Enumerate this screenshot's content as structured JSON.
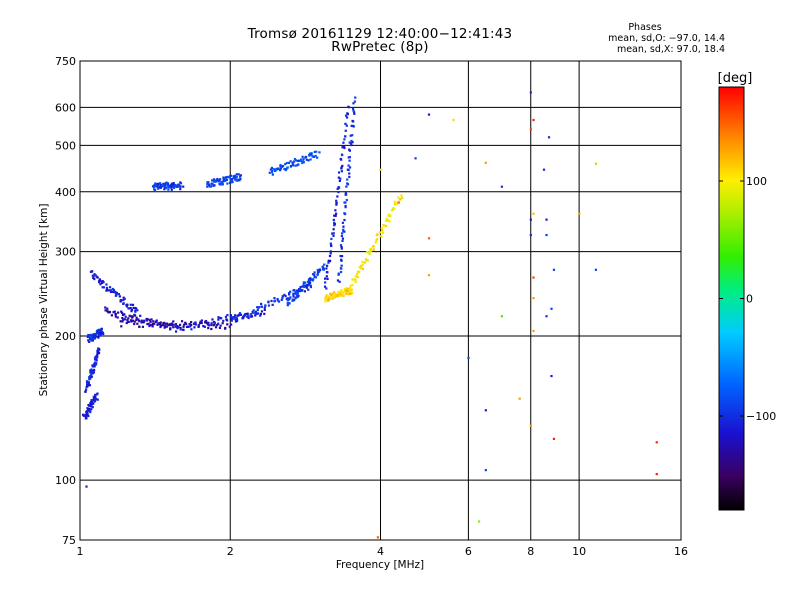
{
  "header": {
    "title_line1": "Tromsø 20161129 12:40:00−12:41:43",
    "title_line2": "RwPretec (8p)"
  },
  "phase_info": {
    "label": "Phases",
    "o_mode": "mean, sd,O: −97.0, 14.4",
    "x_mode": "mean, sd,X: 97.0, 18.4"
  },
  "colorbar": {
    "unit": "[deg]",
    "tick_labels": [
      "100",
      "0",
      "−100"
    ],
    "tick_values": [
      100,
      0,
      -100
    ],
    "range": [
      -180,
      180
    ]
  },
  "chart_data": {
    "type": "scatter",
    "title": "Tromsø 20161129 12:40:00−12:41:43",
    "subtitle": "RwPretec (8p)",
    "xlabel": "Frequency [MHz]",
    "ylabel": "Stationary phase Virtual Height [km]",
    "xscale": "log",
    "yscale": "log",
    "xlim": [
      1,
      16
    ],
    "ylim": [
      75,
      750
    ],
    "x_tick_labels": [
      "1",
      "2",
      "4",
      "6",
      "8",
      "10",
      "16"
    ],
    "x_ticks": [
      1,
      2,
      4,
      6,
      8,
      10,
      16
    ],
    "y_tick_labels": [
      "750",
      "600",
      "500",
      "400",
      "300",
      "200",
      "100",
      "75"
    ],
    "y_ticks": [
      750,
      600,
      500,
      400,
      300,
      200,
      100,
      75
    ],
    "grid": true,
    "color_variable": "Phase [deg]",
    "traces": [
      {
        "x": [
          1.02,
          1.08
        ],
        "y": [
          135,
          150
        ],
        "phase": -110
      },
      {
        "x": [
          1.03,
          1.09
        ],
        "y": [
          155,
          188
        ],
        "phase": -105
      },
      {
        "x": [
          1.04,
          1.11
        ],
        "y": [
          197,
          205
        ],
        "phase": -100
      },
      {
        "x": [
          1.05,
          1.3
        ],
        "y": [
          270,
          225
        ],
        "phase": -110
      },
      {
        "x": [
          1.12,
          1.55
        ],
        "y": [
          226,
          208
        ],
        "phase": -125
      },
      {
        "x": [
          1.2,
          2.0
        ],
        "y": [
          213,
          210
        ],
        "phase": -130
      },
      {
        "x": [
          1.55,
          2.35
        ],
        "y": [
          207,
          225
        ],
        "phase": -115
      },
      {
        "x": [
          2.0,
          2.9
        ],
        "y": [
          215,
          255
        ],
        "phase": -100
      },
      {
        "x": [
          2.6,
          3.1
        ],
        "y": [
          235,
          280
        ],
        "phase": -95
      },
      {
        "x": [
          3.1,
          3.45
        ],
        "y": [
          250,
          600
        ],
        "phase": -105
      },
      {
        "x": [
          3.3,
          3.55
        ],
        "y": [
          260,
          620
        ],
        "phase": -100
      },
      {
        "x": [
          1.4,
          1.6
        ],
        "y": [
          410,
          412
        ],
        "phase": -95
      },
      {
        "x": [
          1.8,
          2.1
        ],
        "y": [
          415,
          430
        ],
        "phase": -90
      },
      {
        "x": [
          2.4,
          3.0
        ],
        "y": [
          440,
          480
        ],
        "phase": -85
      },
      {
        "x": [
          3.1,
          3.5
        ],
        "y": [
          240,
          250
        ],
        "phase": 110
      },
      {
        "x": [
          3.5,
          4.4
        ],
        "y": [
          255,
          395
        ],
        "phase": 100
      }
    ],
    "scattered_points": [
      {
        "x": 1.03,
        "y": 97,
        "phase": -110
      },
      {
        "x": 4.0,
        "y": 445,
        "phase": 110
      },
      {
        "x": 3.95,
        "y": 76,
        "phase": 150
      },
      {
        "x": 4.35,
        "y": 380,
        "phase": 150
      },
      {
        "x": 4.7,
        "y": 470,
        "phase": -90
      },
      {
        "x": 5.0,
        "y": 580,
        "phase": -110
      },
      {
        "x": 5.0,
        "y": 320,
        "phase": 150
      },
      {
        "x": 5.0,
        "y": 268,
        "phase": 130
      },
      {
        "x": 5.6,
        "y": 565,
        "phase": 110
      },
      {
        "x": 6.0,
        "y": 180,
        "phase": -90
      },
      {
        "x": 6.3,
        "y": 82,
        "phase": 60
      },
      {
        "x": 6.5,
        "y": 460,
        "phase": 130
      },
      {
        "x": 6.5,
        "y": 140,
        "phase": -110
      },
      {
        "x": 6.5,
        "y": 105,
        "phase": -90
      },
      {
        "x": 7.0,
        "y": 410,
        "phase": -100
      },
      {
        "x": 7.0,
        "y": 220,
        "phase": 40
      },
      {
        "x": 7.6,
        "y": 148,
        "phase": 130
      },
      {
        "x": 8.0,
        "y": 645,
        "phase": -100
      },
      {
        "x": 8.1,
        "y": 565,
        "phase": 170
      },
      {
        "x": 8.0,
        "y": 540,
        "phase": 160
      },
      {
        "x": 8.1,
        "y": 360,
        "phase": 120
      },
      {
        "x": 8.0,
        "y": 350,
        "phase": -110
      },
      {
        "x": 8.0,
        "y": 325,
        "phase": -100
      },
      {
        "x": 8.1,
        "y": 265,
        "phase": 160
      },
      {
        "x": 8.1,
        "y": 240,
        "phase": 130
      },
      {
        "x": 8.1,
        "y": 205,
        "phase": 130
      },
      {
        "x": 8.0,
        "y": 130,
        "phase": 130
      },
      {
        "x": 8.5,
        "y": 445,
        "phase": -100
      },
      {
        "x": 8.6,
        "y": 350,
        "phase": -110
      },
      {
        "x": 8.6,
        "y": 325,
        "phase": -90
      },
      {
        "x": 8.7,
        "y": 520,
        "phase": -100
      },
      {
        "x": 8.9,
        "y": 275,
        "phase": -90
      },
      {
        "x": 8.8,
        "y": 228,
        "phase": -90
      },
      {
        "x": 8.6,
        "y": 220,
        "phase": -100
      },
      {
        "x": 8.8,
        "y": 165,
        "phase": -110
      },
      {
        "x": 8.9,
        "y": 122,
        "phase": 170
      },
      {
        "x": 10.0,
        "y": 360,
        "phase": 130
      },
      {
        "x": 10.8,
        "y": 458,
        "phase": 70
      },
      {
        "x": 10.8,
        "y": 275,
        "phase": -90
      },
      {
        "x": 14.3,
        "y": 120,
        "phase": 170
      },
      {
        "x": 14.3,
        "y": 103,
        "phase": 170
      }
    ]
  }
}
